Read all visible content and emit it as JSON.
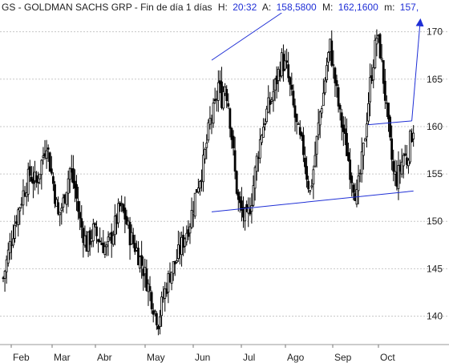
{
  "header": {
    "symbol": "GS - GOLDMAN SACHS GRP - Fin de día 1 días",
    "h_label": "H:",
    "h_value": "20:32",
    "a_label": "A:",
    "a_value": "158,5800",
    "m_label": "M:",
    "m_value": "162,1600",
    "mlow_label": "m:",
    "mlow_value": "157,"
  },
  "colors": {
    "candle": "#000000",
    "channel": "#1f2fd6",
    "value_text": "#1f2fd6",
    "grid": "#c8c8c8"
  },
  "chart_data": {
    "type": "candlestick",
    "title": "GS - GOLDMAN SACHS GRP - Fin de día 1 días",
    "x_tick_labels": [
      "Feb",
      "Mar",
      "Abr",
      "May",
      "Jun",
      "Jul",
      "Ago",
      "Sep",
      "Oct"
    ],
    "y_tick_values": [
      140,
      145,
      150,
      155,
      160,
      165,
      170
    ],
    "ylim": [
      137,
      172
    ],
    "grid": "horizontal",
    "close_path": [
      [
        0,
        144
      ],
      [
        4,
        147.5
      ],
      [
        8,
        150.5
      ],
      [
        12,
        153
      ],
      [
        16,
        155
      ],
      [
        20,
        154
      ],
      [
        24,
        157
      ],
      [
        26,
        158.5
      ],
      [
        28,
        156
      ],
      [
        30,
        154
      ],
      [
        33,
        150.5
      ],
      [
        36,
        152
      ],
      [
        40,
        155.5
      ],
      [
        43,
        153.5
      ],
      [
        46,
        150
      ],
      [
        50,
        147.5
      ],
      [
        54,
        149
      ],
      [
        58,
        148
      ],
      [
        62,
        147
      ],
      [
        66,
        149
      ],
      [
        70,
        151.5
      ],
      [
        73,
        150.5
      ],
      [
        76,
        148.5
      ],
      [
        80,
        147
      ],
      [
        84,
        145
      ],
      [
        88,
        142.5
      ],
      [
        91,
        140.5
      ],
      [
        93,
        139.5
      ],
      [
        96,
        142
      ],
      [
        100,
        144.5
      ],
      [
        104,
        146
      ],
      [
        108,
        148
      ],
      [
        112,
        150
      ],
      [
        116,
        153.5
      ],
      [
        120,
        156
      ],
      [
        124,
        160.5
      ],
      [
        127,
        162
      ],
      [
        129,
        164.5
      ],
      [
        131,
        163
      ],
      [
        133,
        164.5
      ],
      [
        135,
        162.5
      ],
      [
        137,
        159
      ],
      [
        139,
        155
      ],
      [
        141,
        152
      ],
      [
        143,
        151
      ],
      [
        146,
        150
      ],
      [
        149,
        152.5
      ],
      [
        152,
        156.5
      ],
      [
        155,
        159.5
      ],
      [
        158,
        161.5
      ],
      [
        161,
        163
      ],
      [
        164,
        165
      ],
      [
        167,
        167
      ],
      [
        170,
        166
      ],
      [
        172,
        164
      ],
      [
        174,
        162
      ],
      [
        176,
        160
      ],
      [
        178,
        158.5
      ],
      [
        180,
        157.5
      ],
      [
        182,
        155
      ],
      [
        184,
        153
      ],
      [
        186,
        155.5
      ],
      [
        188,
        158.5
      ],
      [
        190,
        161.5
      ],
      [
        192,
        163.5
      ],
      [
        194,
        166.5
      ],
      [
        196,
        168.5
      ],
      [
        198,
        166
      ],
      [
        200,
        163.5
      ],
      [
        202,
        161
      ],
      [
        204,
        159.5
      ],
      [
        206,
        157.5
      ],
      [
        208,
        155.5
      ],
      [
        210,
        154
      ],
      [
        212,
        152.5
      ],
      [
        214,
        155
      ],
      [
        216,
        157.5
      ],
      [
        218,
        161
      ],
      [
        220,
        164.5
      ],
      [
        222,
        167
      ],
      [
        224,
        169.5
      ],
      [
        226,
        168
      ],
      [
        228,
        165
      ],
      [
        230,
        161.5
      ],
      [
        232,
        158
      ],
      [
        234,
        155
      ],
      [
        236,
        154.5
      ],
      [
        238,
        155.5
      ],
      [
        240,
        157
      ],
      [
        242,
        156.5
      ],
      [
        244,
        158.5
      ],
      [
        246,
        160
      ]
    ],
    "series": [
      {
        "name": "",
        "type": "line",
        "points": [
          [
            125,
            167
          ],
          [
            167,
            172
          ]
        ]
      },
      {
        "name": "",
        "type": "line",
        "points": [
          [
            125,
            151
          ],
          [
            246,
            153.2
          ]
        ]
      },
      {
        "name": "",
        "type": "line",
        "points": [
          [
            219,
            160.2
          ],
          [
            245,
            160.6
          ]
        ]
      },
      {
        "name": "",
        "type": "arrow",
        "points": [
          [
            245,
            160.6
          ],
          [
            250,
            171
          ]
        ]
      }
    ]
  }
}
